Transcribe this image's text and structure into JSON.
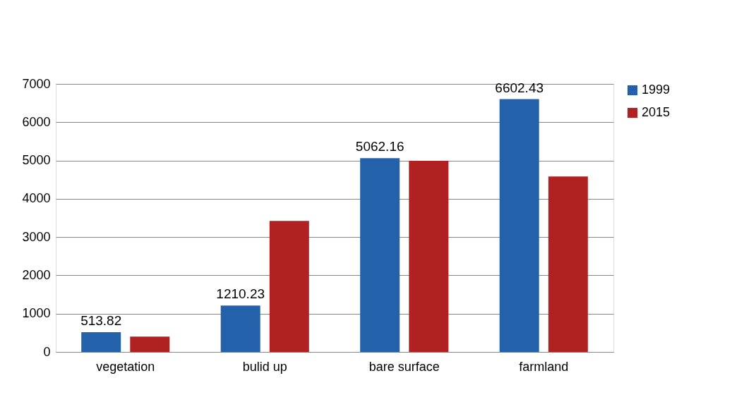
{
  "chart_data": {
    "type": "bar",
    "categories": [
      "vegetation",
      "bulid up",
      "bare surface",
      "farmland"
    ],
    "series": [
      {
        "name": "1999",
        "color": "#2461ab",
        "values": [
          513.82,
          1210.23,
          5062.16,
          6602.43
        ],
        "value_labels": [
          "513.82",
          "1210.23",
          "5062.16",
          "6602.43"
        ]
      },
      {
        "name": "2015",
        "color": "#b02121",
        "values": [
          400,
          3420,
          4990,
          4580
        ]
      }
    ],
    "ylim": [
      0,
      7000
    ],
    "yticks": [
      0,
      1000,
      2000,
      3000,
      4000,
      5000,
      6000,
      7000
    ],
    "grid": "y",
    "legend": "right"
  }
}
